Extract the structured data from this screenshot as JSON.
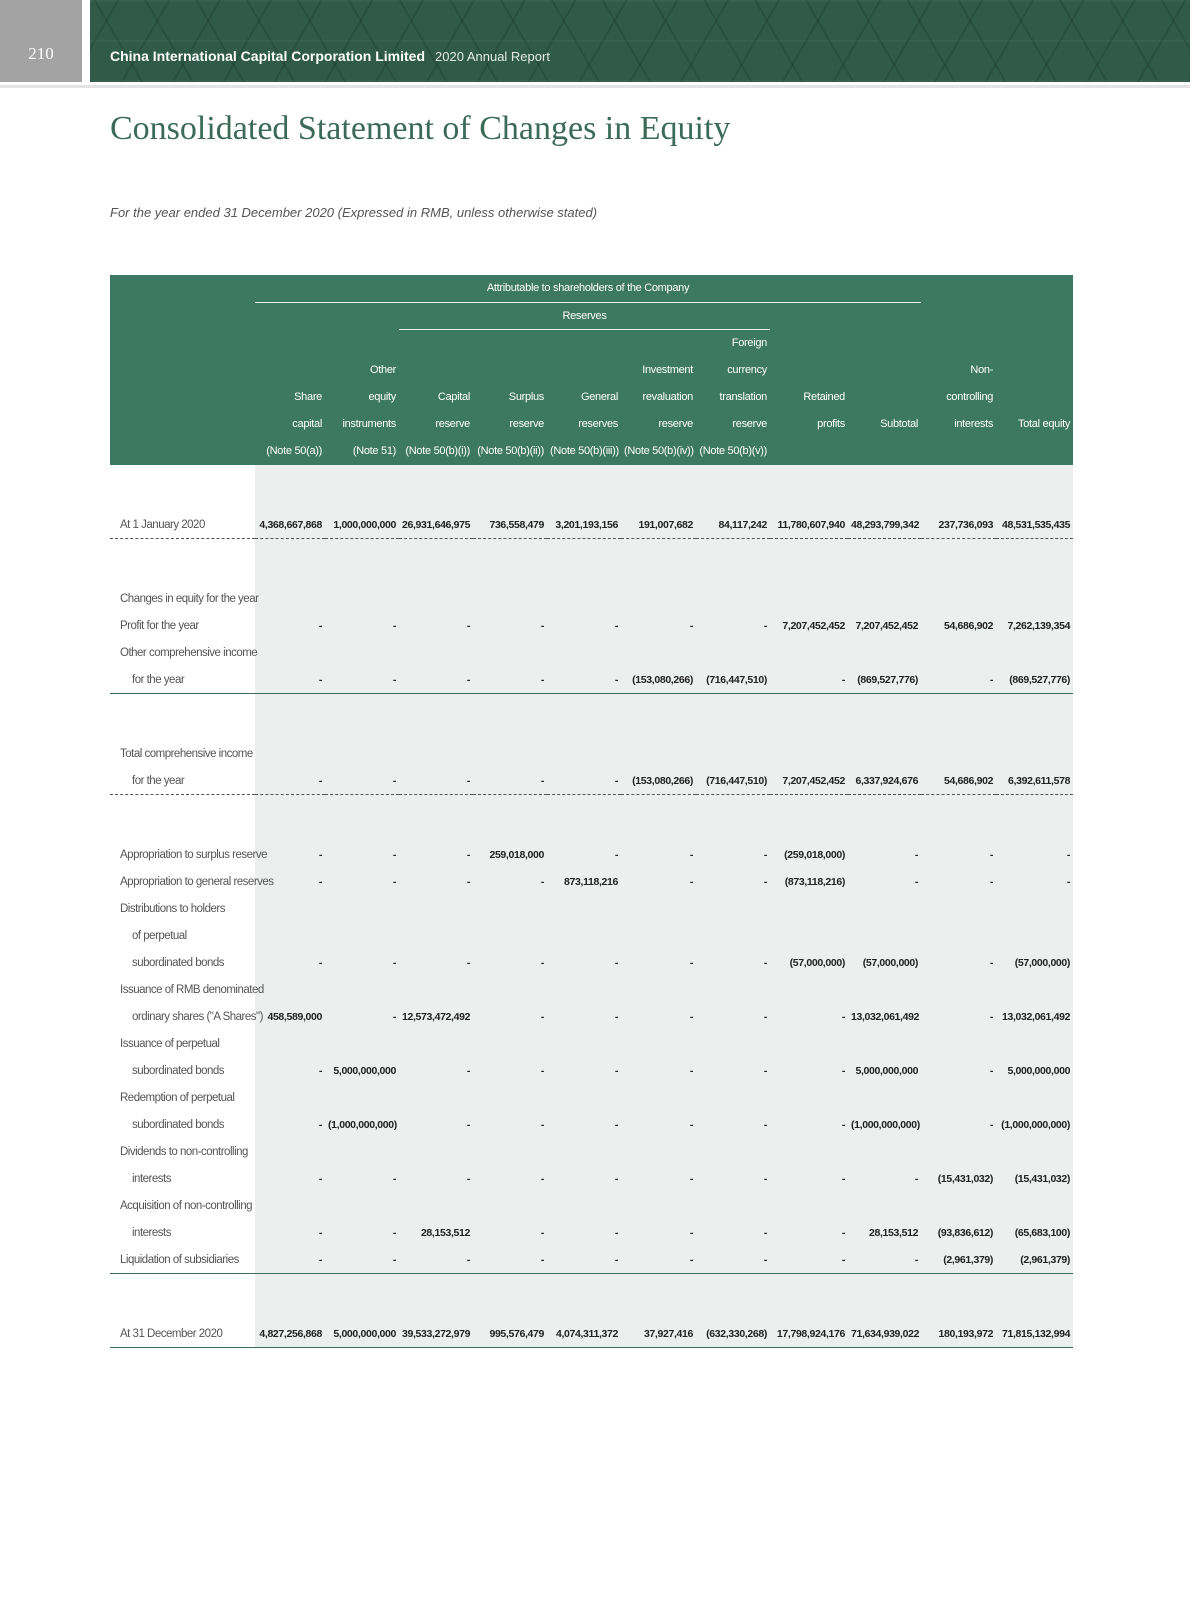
{
  "page": {
    "number": "210",
    "company": "China International Capital Corporation Limited",
    "report": "2020 Annual Report",
    "band_color": "#2f5b48"
  },
  "title": "Consolidated Statement of Changes in Equity",
  "subtitle": "For the year ended 31 December 2020 (Expressed in RMB, unless otherwise stated)",
  "table": {
    "header_color": "#3d7862",
    "group": "Attributable to shareholders of the Company",
    "subgroup": "Reserves",
    "columns": [
      {
        "lines": [
          "Share",
          "capital"
        ],
        "note": "(Note 50(a))"
      },
      {
        "lines": [
          "Other",
          "equity",
          "instruments"
        ],
        "note": "(Note 51)"
      },
      {
        "lines": [
          "Capital",
          "reserve"
        ],
        "note": "(Note 50(b)(i))"
      },
      {
        "lines": [
          "Surplus",
          "reserve"
        ],
        "note": "(Note 50(b)(ii))"
      },
      {
        "lines": [
          "General",
          "reserves"
        ],
        "note": "(Note 50(b)(iii))"
      },
      {
        "lines": [
          "Investment",
          "revaluation",
          "reserve"
        ],
        "note": "(Note 50(b)(iv))"
      },
      {
        "lines": [
          "Foreign",
          "currency",
          "translation",
          "reserve"
        ],
        "note": "(Note 50(b)(v))"
      },
      {
        "lines": [
          "Retained",
          "profits"
        ],
        "note": ""
      },
      {
        "lines": [
          "Subtotal"
        ],
        "note": ""
      },
      {
        "lines": [
          "Non-",
          "controlling",
          "interests"
        ],
        "note": ""
      },
      {
        "lines": [
          "Total equity"
        ],
        "note": ""
      }
    ],
    "rows": [
      {
        "label": [
          "At 1 January 2020"
        ],
        "values": [
          "4,368,667,868",
          "1,000,000,000",
          "26,931,646,975",
          "736,558,479",
          "3,201,193,156",
          "191,007,682",
          "84,117,242",
          "11,780,607,940",
          "48,293,799,342",
          "237,736,093",
          "48,531,535,435"
        ],
        "border": "dashed"
      },
      {
        "label": [
          "Changes in equity for the year"
        ],
        "values": []
      },
      {
        "label": [
          "Profit for the year"
        ],
        "values": [
          "-",
          "-",
          "-",
          "-",
          "-",
          "-",
          "-",
          "7,207,452,452",
          "7,207,452,452",
          "54,686,902",
          "7,262,139,354"
        ]
      },
      {
        "label": [
          "Other comprehensive income",
          "for the year"
        ],
        "values": [
          "-",
          "-",
          "-",
          "-",
          "-",
          "(153,080,266)",
          "(716,447,510)",
          "-",
          "(869,527,776)",
          "-",
          "(869,527,776)"
        ],
        "border": "solid"
      },
      {
        "label": [
          "Total comprehensive income",
          "for the year"
        ],
        "values": [
          "-",
          "-",
          "-",
          "-",
          "-",
          "(153,080,266)",
          "(716,447,510)",
          "7,207,452,452",
          "6,337,924,676",
          "54,686,902",
          "6,392,611,578"
        ],
        "border": "dashed"
      },
      {
        "label": [
          "Appropriation to surplus reserve"
        ],
        "values": [
          "-",
          "-",
          "-",
          "259,018,000",
          "-",
          "-",
          "-",
          "(259,018,000)",
          "-",
          "-",
          "-"
        ]
      },
      {
        "label": [
          "Appropriation to general reserves"
        ],
        "values": [
          "-",
          "-",
          "-",
          "-",
          "873,118,216",
          "-",
          "-",
          "(873,118,216)",
          "-",
          "-",
          "-"
        ]
      },
      {
        "label": [
          "Distributions to holders",
          "of perpetual",
          "subordinated bonds"
        ],
        "values": [
          "-",
          "-",
          "-",
          "-",
          "-",
          "-",
          "-",
          "(57,000,000)",
          "(57,000,000)",
          "-",
          "(57,000,000)"
        ]
      },
      {
        "label": [
          "Issuance of RMB denominated",
          "ordinary shares (\"A Shares\")"
        ],
        "values": [
          "458,589,000",
          "-",
          "12,573,472,492",
          "-",
          "-",
          "-",
          "-",
          "-",
          "13,032,061,492",
          "-",
          "13,032,061,492"
        ]
      },
      {
        "label": [
          "Issuance of perpetual",
          "subordinated bonds"
        ],
        "values": [
          "-",
          "5,000,000,000",
          "-",
          "-",
          "-",
          "-",
          "-",
          "-",
          "5,000,000,000",
          "-",
          "5,000,000,000"
        ]
      },
      {
        "label": [
          "Redemption of perpetual",
          "subordinated bonds"
        ],
        "values": [
          "-",
          "(1,000,000,000)",
          "-",
          "-",
          "-",
          "-",
          "-",
          "-",
          "(1,000,000,000)",
          "-",
          "(1,000,000,000)"
        ]
      },
      {
        "label": [
          "Dividends to non-controlling",
          "interests"
        ],
        "values": [
          "-",
          "-",
          "-",
          "-",
          "-",
          "-",
          "-",
          "-",
          "-",
          "(15,431,032)",
          "(15,431,032)"
        ]
      },
      {
        "label": [
          "Acquisition of non-controlling",
          "interests"
        ],
        "values": [
          "-",
          "-",
          "28,153,512",
          "-",
          "-",
          "-",
          "-",
          "-",
          "28,153,512",
          "(93,836,612)",
          "(65,683,100)"
        ]
      },
      {
        "label": [
          "Liquidation of subsidiaries"
        ],
        "values": [
          "-",
          "-",
          "-",
          "-",
          "-",
          "-",
          "-",
          "-",
          "-",
          "(2,961,379)",
          "(2,961,379)"
        ],
        "border": "solid"
      },
      {
        "label": [
          "At 31 December 2020"
        ],
        "values": [
          "4,827,256,868",
          "5,000,000,000",
          "39,533,272,979",
          "995,576,479",
          "4,074,311,372",
          "37,927,416",
          "(632,330,268)",
          "17,798,924,176",
          "71,634,939,022",
          "180,193,972",
          "71,815,132,994"
        ],
        "border": "solid"
      }
    ]
  }
}
